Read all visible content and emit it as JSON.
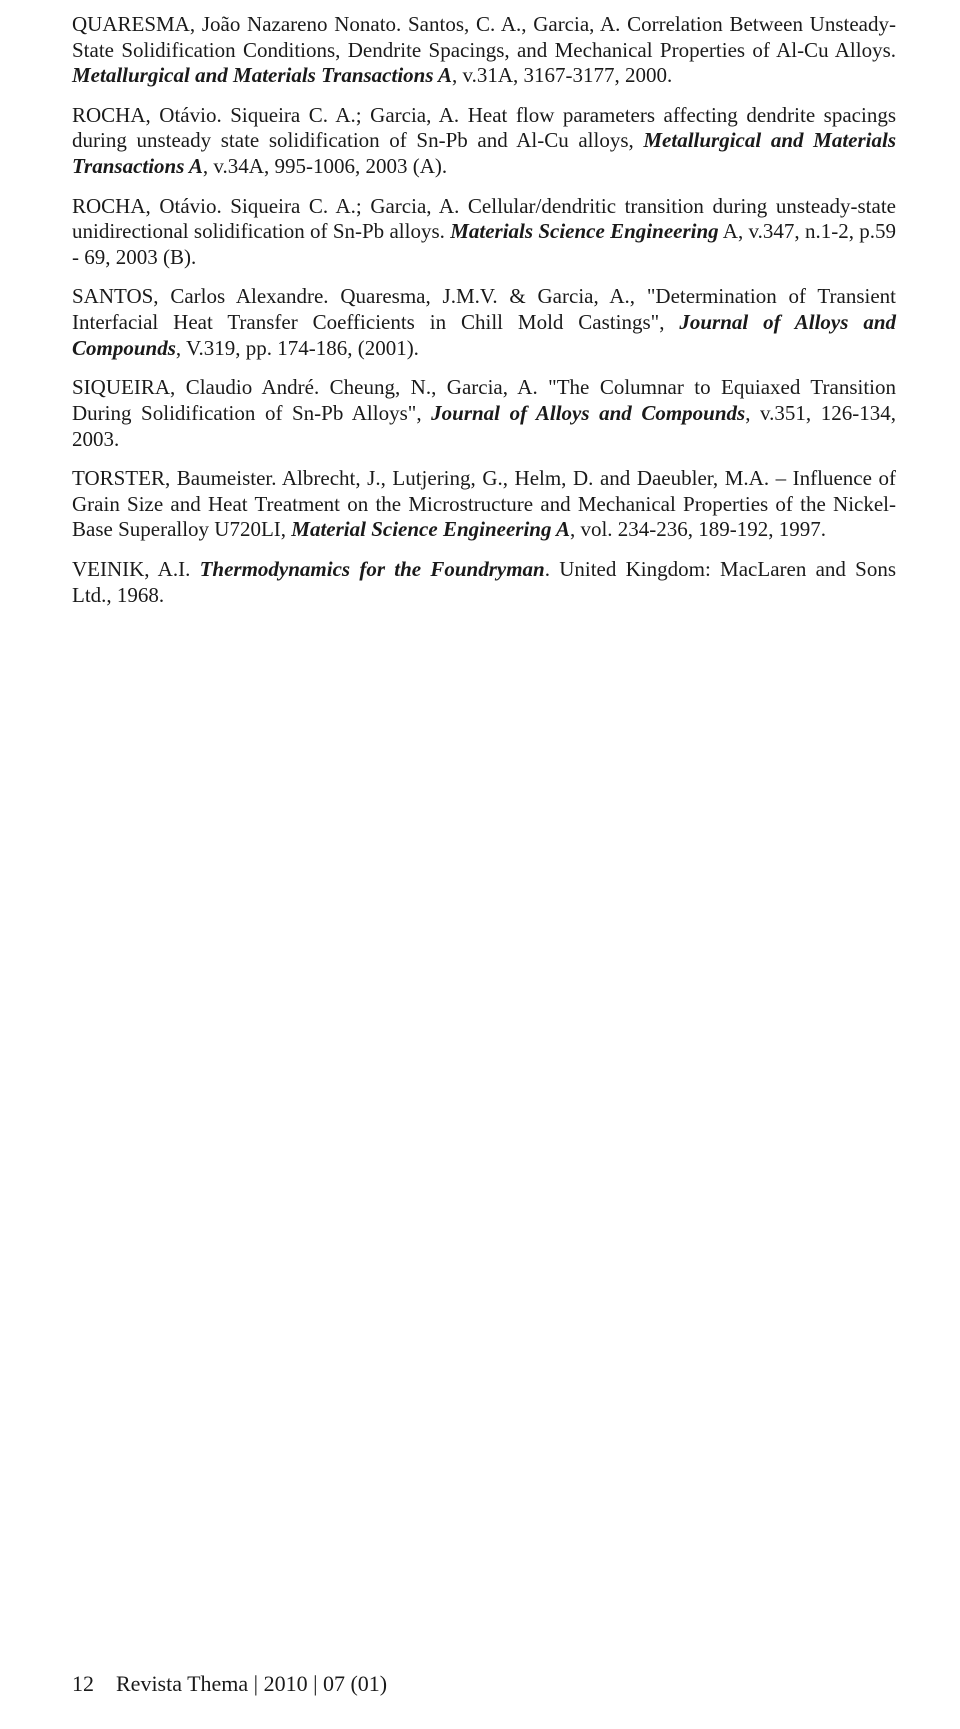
{
  "refs": [
    {
      "parts": [
        {
          "t": "QUARESMA, João Nazareno Nonato. Santos, C. A., Garcia, A. Correlation Between Unsteady-State Solidification Conditions, Dendrite Spacings, and Mechanical Properties of Al-Cu Alloys. ",
          "cls": ""
        },
        {
          "t": "Metallurgical and Materials Transactions A",
          "cls": "bolditalic"
        },
        {
          "t": ", v.31A, 3167-3177, 2000.",
          "cls": ""
        }
      ]
    },
    {
      "parts": [
        {
          "t": "ROCHA, Otávio. Siqueira C. A.; Garcia, A. Heat flow parameters affecting dendrite spacings during unsteady state solidification of Sn-Pb and Al-Cu alloys, ",
          "cls": ""
        },
        {
          "t": "Metallurgical and Materials Transactions A",
          "cls": "bolditalic"
        },
        {
          "t": ", v.34A, 995-1006, 2003 (A).",
          "cls": ""
        }
      ]
    },
    {
      "parts": [
        {
          "t": "ROCHA, Otávio. Siqueira C. A.; Garcia, A. Cellular/dendritic transition during unsteady-state unidirectional solidification of Sn-Pb alloys. ",
          "cls": ""
        },
        {
          "t": "Materials Science Engineering",
          "cls": "bolditalic"
        },
        {
          "t": " A, v.347, n.1-2, p.59 - 69, 2003 (B).",
          "cls": ""
        }
      ]
    },
    {
      "parts": [
        {
          "t": "SANTOS, Carlos Alexandre. Quaresma, J.M.V. & Garcia, A., \"Determination of Transient Interfacial Heat Transfer Coefficients in Chill Mold Castings\", ",
          "cls": ""
        },
        {
          "t": "Journal of Alloys and Compounds",
          "cls": "bolditalic"
        },
        {
          "t": ", V.319, pp. 174-186, (2001).",
          "cls": ""
        }
      ]
    },
    {
      "parts": [
        {
          "t": "SIQUEIRA, Claudio André. Cheung, N., Garcia, A. \"The Columnar to Equiaxed Transition During Solidification of Sn-Pb Alloys\", ",
          "cls": ""
        },
        {
          "t": "Journal of Alloys and Compounds",
          "cls": "bolditalic"
        },
        {
          "t": ", v.351, 126-134, 2003.",
          "cls": ""
        }
      ]
    },
    {
      "parts": [
        {
          "t": "TORSTER, Baumeister. Albrecht, J., Lutjering, G., Helm, D. and Daeubler, M.A. – Influence of Grain Size and Heat Treatment on the Microstructure and Mechanical Properties of the Nickel-Base Superalloy U720LI, ",
          "cls": ""
        },
        {
          "t": "Material Science Engineering A",
          "cls": "bolditalic"
        },
        {
          "t": ", vol. 234-236, 189-192, 1997.",
          "cls": ""
        }
      ]
    },
    {
      "parts": [
        {
          "t": "VEINIK, A.I. ",
          "cls": ""
        },
        {
          "t": "Thermodynamics for the Foundryman",
          "cls": "bolditalic"
        },
        {
          "t": ". United Kingdom: MacLaren and Sons Ltd., 1968.",
          "cls": ""
        }
      ]
    }
  ],
  "footer": {
    "page_number": "12",
    "journal": "Revista Thema | 2010 | 07 (01)"
  }
}
